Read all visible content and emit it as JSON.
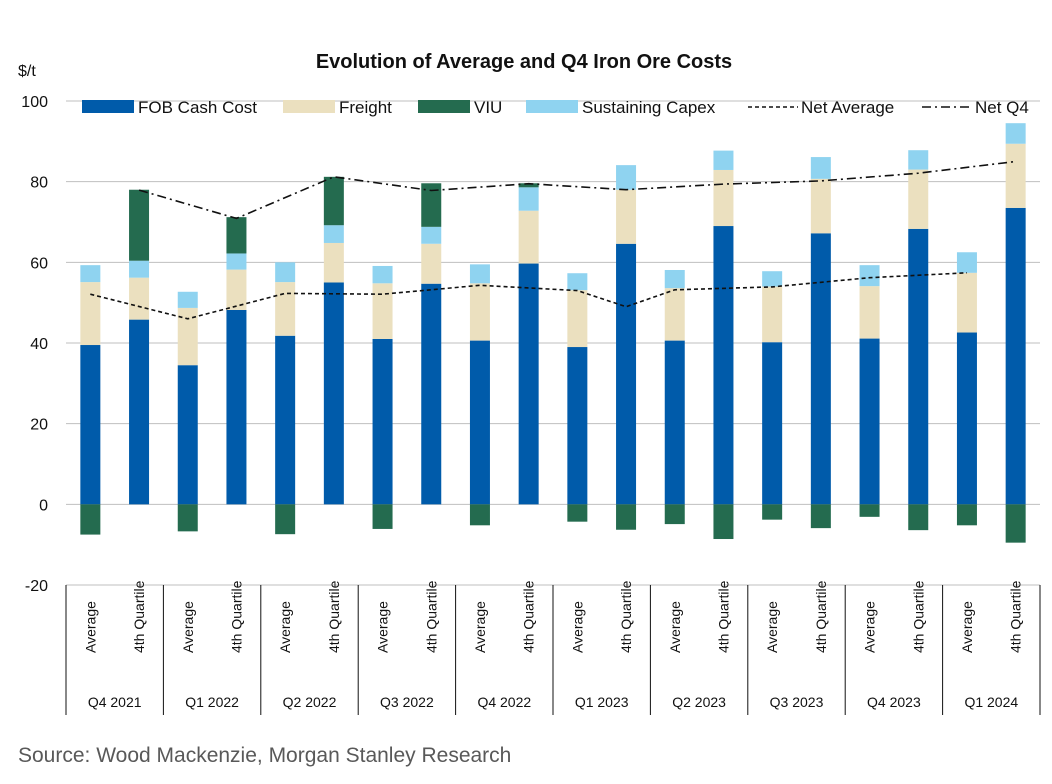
{
  "chart_data": {
    "type": "bar",
    "title": "Evolution of Average and Q4 Iron Ore Costs",
    "ylabel": "$/t",
    "ylim": [
      -20,
      100
    ],
    "yticks": [
      100,
      80,
      60,
      40,
      20,
      0,
      -20
    ],
    "categories": [
      {
        "label": "Average",
        "group": "Q4 2021"
      },
      {
        "label": "4th Quartile",
        "group": "Q4 2021"
      },
      {
        "label": "Average",
        "group": "Q1 2022"
      },
      {
        "label": "4th Quartile",
        "group": "Q1 2022"
      },
      {
        "label": "Average",
        "group": "Q2 2022"
      },
      {
        "label": "4th Quartile",
        "group": "Q2 2022"
      },
      {
        "label": "Average",
        "group": "Q3 2022"
      },
      {
        "label": "4th Quartile",
        "group": "Q3 2022"
      },
      {
        "label": "Average",
        "group": "Q4 2022"
      },
      {
        "label": "4th Quartile",
        "group": "Q4 2022"
      },
      {
        "label": "Average",
        "group": "Q1 2023"
      },
      {
        "label": "4th Quartile",
        "group": "Q1 2023"
      },
      {
        "label": "Average",
        "group": "Q2 2023"
      },
      {
        "label": "4th Quartile",
        "group": "Q2 2023"
      },
      {
        "label": "Average",
        "group": "Q3 2023"
      },
      {
        "label": "4th Quartile",
        "group": "Q3 2023"
      },
      {
        "label": "Average",
        "group": "Q4 2023"
      },
      {
        "label": "4th Quartile",
        "group": "Q4 2023"
      },
      {
        "label": "Average",
        "group": "Q1 2024"
      },
      {
        "label": "4th Quartile",
        "group": "Q1 2024"
      }
    ],
    "groups": [
      "Q4 2021",
      "Q1 2022",
      "Q2 2022",
      "Q3 2022",
      "Q4 2022",
      "Q1 2023",
      "Q2 2023",
      "Q3 2023",
      "Q4 2023",
      "Q1 2024"
    ],
    "stack_series": [
      {
        "name": "FOB Cash Cost",
        "color": "#005BAA",
        "values": [
          39.5,
          45.8,
          34.5,
          48.2,
          41.8,
          55.0,
          41.0,
          54.7,
          40.6,
          59.7,
          39.0,
          64.6,
          40.6,
          69.0,
          40.2,
          67.2,
          41.1,
          68.3,
          42.6,
          73.5
        ]
      },
      {
        "name": "Freight",
        "color": "#EBE0BF",
        "values": [
          15.6,
          10.4,
          14.2,
          10.0,
          13.3,
          9.8,
          13.8,
          9.9,
          14.2,
          13.1,
          14.1,
          13.4,
          13.0,
          13.9,
          13.8,
          13.5,
          13.0,
          14.7,
          14.8,
          15.9
        ]
      },
      {
        "name": "Sustaining Capex",
        "color": "#8FD3F0",
        "values": [
          4.2,
          4.2,
          4.0,
          4.0,
          4.9,
          4.4,
          4.3,
          4.2,
          4.7,
          5.8,
          4.2,
          6.1,
          4.5,
          4.8,
          3.8,
          5.4,
          5.2,
          4.8,
          5.1,
          5.1
        ]
      },
      {
        "name": "VIU",
        "color": "#246B4F",
        "values": [
          -7.5,
          17.6,
          -6.7,
          9.0,
          -7.4,
          12.0,
          -6.1,
          10.8,
          -5.2,
          1.0,
          -4.3,
          -6.3,
          -4.9,
          -8.6,
          -3.8,
          -5.9,
          -3.1,
          -6.4,
          -5.2,
          -9.5
        ]
      }
    ],
    "line_series": [
      {
        "name": "Net Average",
        "style": "dashed",
        "color": "#111111",
        "points": [
          [
            0,
            52.1
          ],
          [
            2,
            46.0
          ],
          [
            4,
            52.3
          ],
          [
            6,
            52.1
          ],
          [
            8,
            54.3
          ],
          [
            10,
            53.0
          ],
          [
            11,
            49.0
          ],
          [
            12,
            53.2
          ],
          [
            14,
            53.9
          ],
          [
            16,
            56.2
          ],
          [
            18,
            57.4
          ]
        ]
      },
      {
        "name": "Net Q4",
        "style": "dashdot",
        "color": "#111111",
        "points": [
          [
            1,
            77.9
          ],
          [
            3,
            70.9
          ],
          [
            5,
            81.2
          ],
          [
            7,
            77.8
          ],
          [
            9,
            79.5
          ],
          [
            11,
            78.0
          ],
          [
            13,
            79.4
          ],
          [
            15,
            80.2
          ],
          [
            17,
            82.1
          ],
          [
            19,
            85.0
          ]
        ]
      }
    ],
    "legend": [
      "FOB Cash Cost",
      "Freight",
      "VIU",
      "Sustaining Capex",
      "Net Average",
      "Net Q4"
    ],
    "legend_position": "top"
  },
  "source": "Source: Wood Mackenzie, Morgan Stanley Research"
}
